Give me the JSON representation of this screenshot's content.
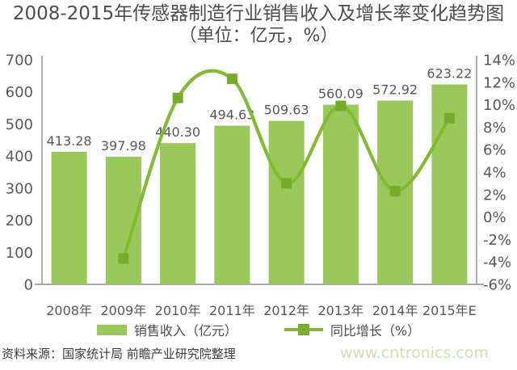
{
  "title": {
    "line1": "2008-2015年传感器制造行业销售收入及增长率变化趋势图",
    "line2": "（单位：亿元，%）"
  },
  "chart_data": {
    "type": "bar+line combo",
    "categories": [
      "2008年",
      "2009年",
      "2010年",
      "2011年",
      "2012年",
      "2013年",
      "2014年",
      "2015年E"
    ],
    "series": [
      {
        "name": "销售收入（亿元）",
        "type": "bar",
        "axis": "left",
        "values": [
          413.28,
          397.98,
          440.3,
          494.63,
          509.63,
          560.09,
          572.92,
          623.22
        ],
        "labels": [
          "413.28",
          "397.98",
          "440.30",
          "494.63",
          "509.63",
          "560.09",
          "572.92",
          "623.22"
        ]
      },
      {
        "name": "同比增长（%）",
        "type": "line",
        "axis": "right",
        "values": [
          null,
          -3.7,
          10.6,
          12.3,
          3.0,
          9.9,
          2.3,
          8.8
        ]
      }
    ],
    "left_axis": {
      "min": 0,
      "max": 700,
      "step": 100
    },
    "right_axis": {
      "min": -6,
      "max": 14,
      "step": 2,
      "suffix": "%"
    },
    "grid": false,
    "legend_position": "bottom"
  },
  "legend": {
    "bar_label": "销售收入（亿元）",
    "line_label": "同比增长（%）"
  },
  "footer": {
    "source": "资料来源：国家统计局 前瞻产业研究院整理",
    "website": "www.cntronics.com"
  },
  "colors": {
    "bar": "#9bc85a",
    "line": "#82ba34",
    "marker": "#74ac2c",
    "axis": "#9b9b9b",
    "label_text": "#585858",
    "watermark": "#c9e5ad"
  }
}
